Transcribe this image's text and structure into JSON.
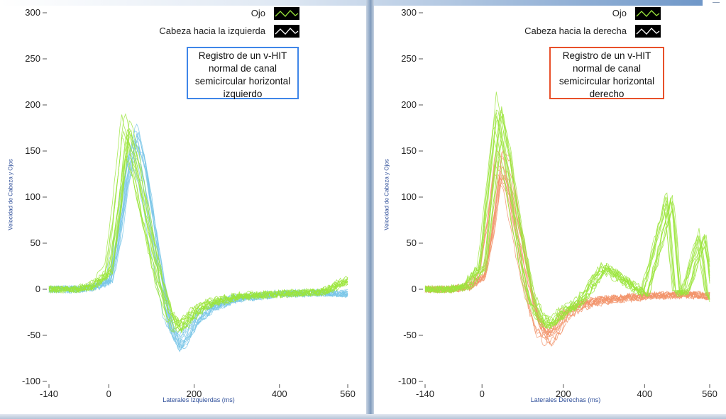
{
  "colors": {
    "eye": "#9BE53C",
    "head_left": "#79C6E8",
    "head_right": "#F2936A",
    "axis_text": "#222222",
    "label_text": "#2F4F9A",
    "box_left": "#3F86E8",
    "box_right": "#E8502A"
  },
  "chart_data": [
    {
      "type": "line",
      "ylim": [
        -100,
        300
      ],
      "xlim": [
        -140,
        560
      ],
      "yticks": [
        "300",
        "250",
        "200",
        "150",
        "100",
        "50",
        "0",
        "-50",
        "-100"
      ],
      "xticks": [
        "-140",
        "0",
        "200",
        "400",
        "560"
      ],
      "ylabel": "Velocidad de Cabeza y Ojos",
      "xlabel": "Laterales Izquierdas (ms)",
      "annotation": [
        "Registro de un v-HIT",
        "normal de canal",
        "semicircular horizontal",
        "izquierdo"
      ],
      "legend": [
        {
          "label": "Ojo",
          "icon": "wave-icon"
        },
        {
          "label": "Cabeza hacia la izquierda",
          "icon": "wave-icon"
        }
      ],
      "series": [
        {
          "name": "Cabeza hacia la izquierda",
          "color": "#79C6E8",
          "x": [
            -140,
            -80,
            -40,
            0,
            20,
            40,
            60,
            80,
            100,
            120,
            140,
            160,
            180,
            200,
            240,
            300,
            400,
            500,
            560
          ],
          "y": [
            0,
            0,
            2,
            10,
            60,
            130,
            165,
            130,
            70,
            10,
            -40,
            -62,
            -52,
            -35,
            -20,
            -10,
            -5,
            -4,
            -5
          ]
        },
        {
          "name": "Ojo",
          "color": "#9BE53C",
          "x": [
            -140,
            -80,
            -40,
            0,
            20,
            40,
            60,
            80,
            100,
            120,
            140,
            160,
            180,
            200,
            240,
            300,
            400,
            500,
            560
          ],
          "y": [
            0,
            0,
            3,
            20,
            90,
            175,
            140,
            90,
            45,
            5,
            -25,
            -42,
            -35,
            -25,
            -15,
            -8,
            -5,
            -3,
            10
          ]
        }
      ]
    },
    {
      "type": "line",
      "ylim": [
        -100,
        300
      ],
      "xlim": [
        -140,
        560
      ],
      "yticks": [
        "300",
        "250",
        "200",
        "150",
        "100",
        "50",
        "0",
        "-50",
        "-100"
      ],
      "xticks": [
        "-140",
        "0",
        "200",
        "400",
        "560"
      ],
      "ylabel": "Velocidad de Cabeza y Ojos",
      "xlabel": "Laterales Derechas (ms)",
      "annotation": [
        "Registro de un v-HIT",
        "normal de canal",
        "semicircular horizontal",
        "derecho"
      ],
      "legend": [
        {
          "label": "Ojo",
          "icon": "wave-icon"
        },
        {
          "label": "Cabeza hacia la derecha",
          "icon": "wave-icon"
        }
      ],
      "series": [
        {
          "name": "Cabeza hacia la derecha",
          "color": "#F2936A",
          "x": [
            -140,
            -80,
            -40,
            0,
            20,
            40,
            60,
            80,
            100,
            120,
            140,
            160,
            180,
            200,
            240,
            300,
            400,
            500,
            560
          ],
          "y": [
            0,
            0,
            2,
            15,
            70,
            140,
            130,
            80,
            30,
            -15,
            -45,
            -55,
            -45,
            -30,
            -18,
            -12,
            -8,
            -6,
            -8
          ]
        },
        {
          "name": "Ojo",
          "color": "#9BE53C",
          "x": [
            -140,
            -80,
            -40,
            0,
            20,
            40,
            60,
            80,
            100,
            120,
            140,
            160,
            180,
            200,
            240,
            300,
            400,
            460,
            480,
            500,
            540,
            560
          ],
          "y": [
            0,
            0,
            3,
            25,
            110,
            195,
            150,
            90,
            35,
            -10,
            -30,
            -40,
            -35,
            -25,
            -15,
            25,
            -5,
            100,
            -5,
            -3,
            60,
            -10
          ]
        }
      ]
    }
  ]
}
